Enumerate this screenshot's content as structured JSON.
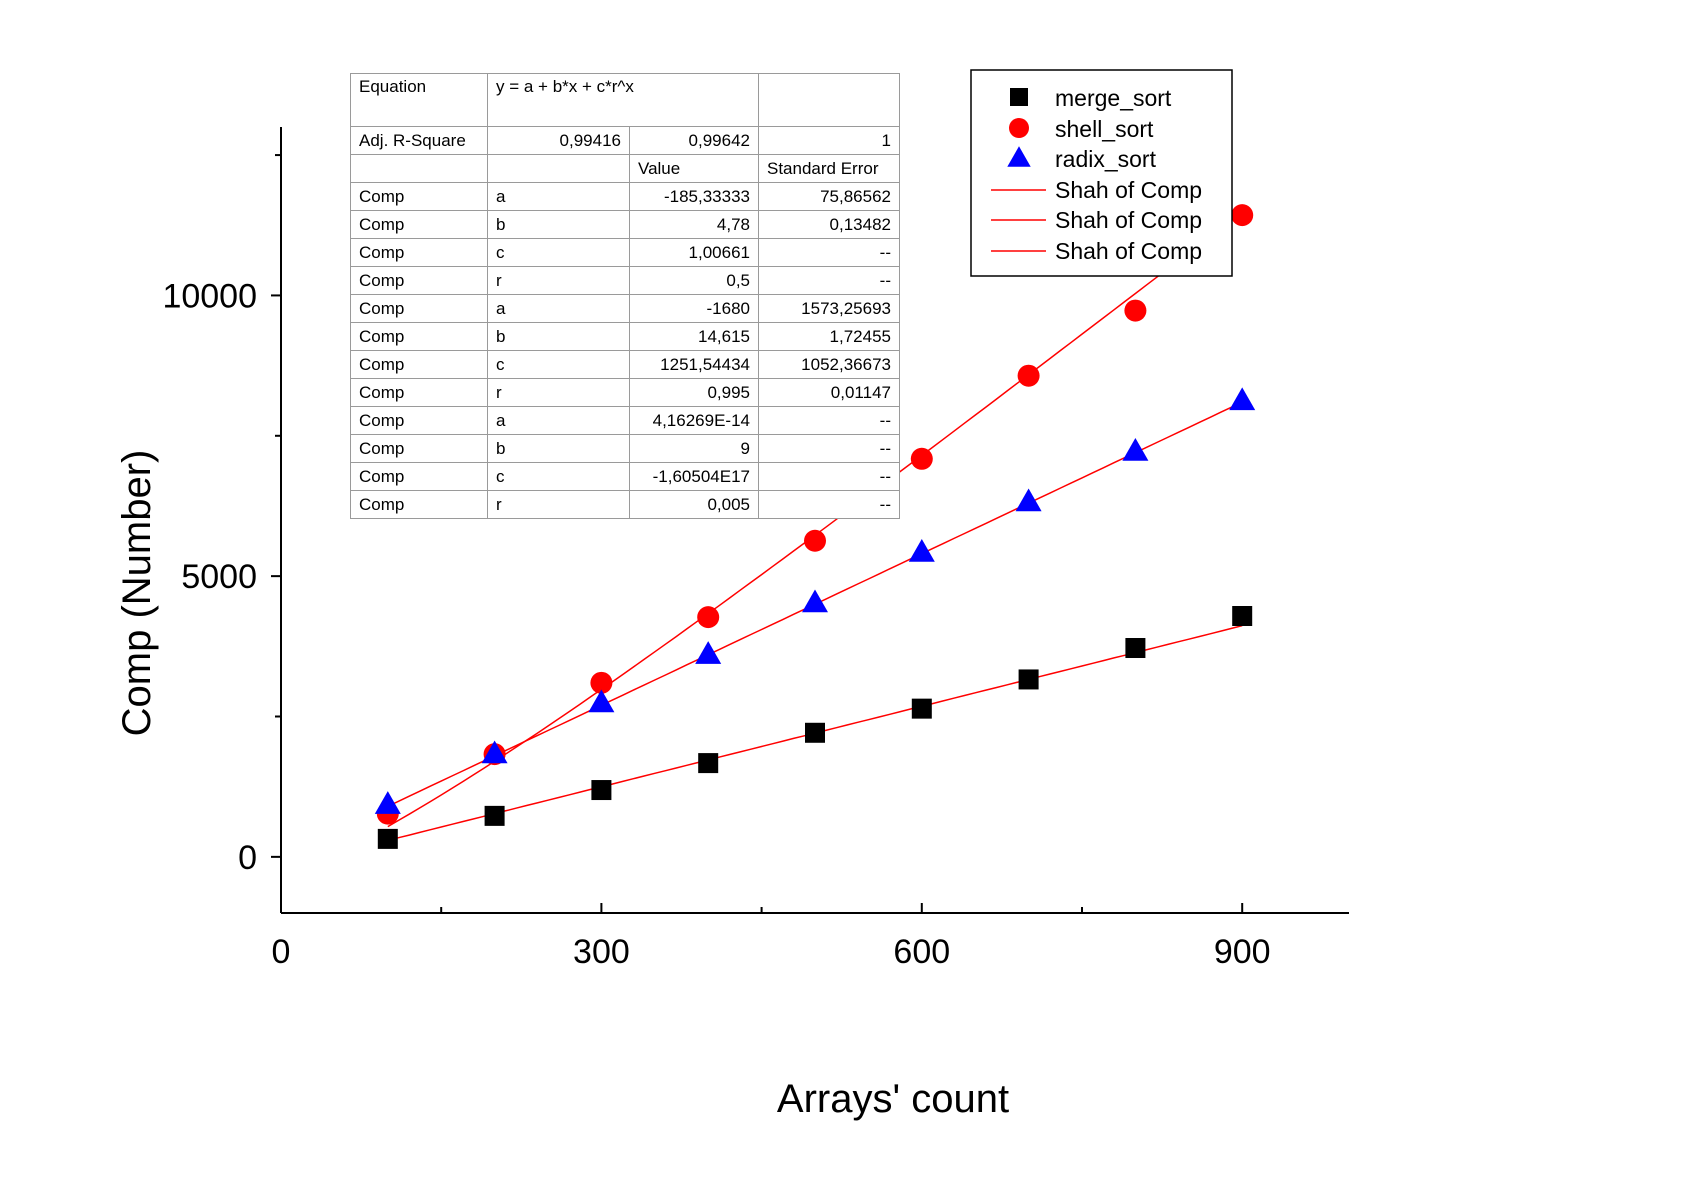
{
  "chart_data": {
    "type": "scatter",
    "xlabel": "Arrays' count",
    "ylabel": "Comp (Number)",
    "xlim": [
      0,
      1000
    ],
    "ylim": [
      -1000,
      13000
    ],
    "xticks": [
      0,
      300,
      600,
      900
    ],
    "yticks": [
      0,
      5000,
      10000
    ],
    "grid": false,
    "legend_position": "top-right",
    "x": [
      100,
      200,
      300,
      400,
      500,
      600,
      700,
      800,
      900
    ],
    "series": [
      {
        "name": "merge_sort",
        "marker": "square",
        "color": "#000000",
        "values": [
          320,
          730,
          1190,
          1670,
          2210,
          2640,
          3160,
          3720,
          4290
        ]
      },
      {
        "name": "shell_sort",
        "marker": "circle",
        "color": "#ff0000",
        "values": [
          770,
          1830,
          3100,
          4270,
          5630,
          7090,
          8570,
          9730,
          11430
        ]
      },
      {
        "name": "radix_sort",
        "marker": "triangle",
        "color": "#0000ff",
        "values": [
          940,
          1840,
          2750,
          3610,
          4530,
          5430,
          6330,
          7230,
          8130
        ]
      }
    ],
    "fits": [
      {
        "name": "Shah of Comp",
        "color": "#ff0000",
        "a": -185.33333,
        "b": 4.78,
        "c": 1.00661,
        "r": 0.5
      },
      {
        "name": "Shah of Comp",
        "color": "#ff0000",
        "a": -1680,
        "b": 14.615,
        "c": 1251.54434,
        "r": 0.995
      },
      {
        "name": "Shah of Comp",
        "color": "#ff0000",
        "a": 4.16269e-14,
        "b": 9,
        "c": -1.60504e+17,
        "r": 0.005
      }
    ]
  },
  "fit_table": {
    "equation_label": "Equation",
    "equation": "y = a + b*x + c*r^x",
    "adj_label": "Adj. R-Square",
    "adj_values": [
      "0,99416",
      "0,99642",
      "1"
    ],
    "header": [
      "",
      "",
      "Value",
      "Standard Error"
    ],
    "rows": [
      [
        "Comp",
        "a",
        "-185,33333",
        "75,86562"
      ],
      [
        "Comp",
        "b",
        "4,78",
        "0,13482"
      ],
      [
        "Comp",
        "c",
        "1,00661",
        "--"
      ],
      [
        "Comp",
        "r",
        "0,5",
        "--"
      ],
      [
        "Comp",
        "a",
        "-1680",
        "1573,25693"
      ],
      [
        "Comp",
        "b",
        "14,615",
        "1,72455"
      ],
      [
        "Comp",
        "c",
        "1251,54434",
        "1052,36673"
      ],
      [
        "Comp",
        "r",
        "0,995",
        "0,01147"
      ],
      [
        "Comp",
        "a",
        "4,16269E-14",
        "--"
      ],
      [
        "Comp",
        "b",
        "9",
        "--"
      ],
      [
        "Comp",
        "c",
        "-1,60504E17",
        "--"
      ],
      [
        "Comp",
        "r",
        "0,005",
        "--"
      ]
    ]
  }
}
